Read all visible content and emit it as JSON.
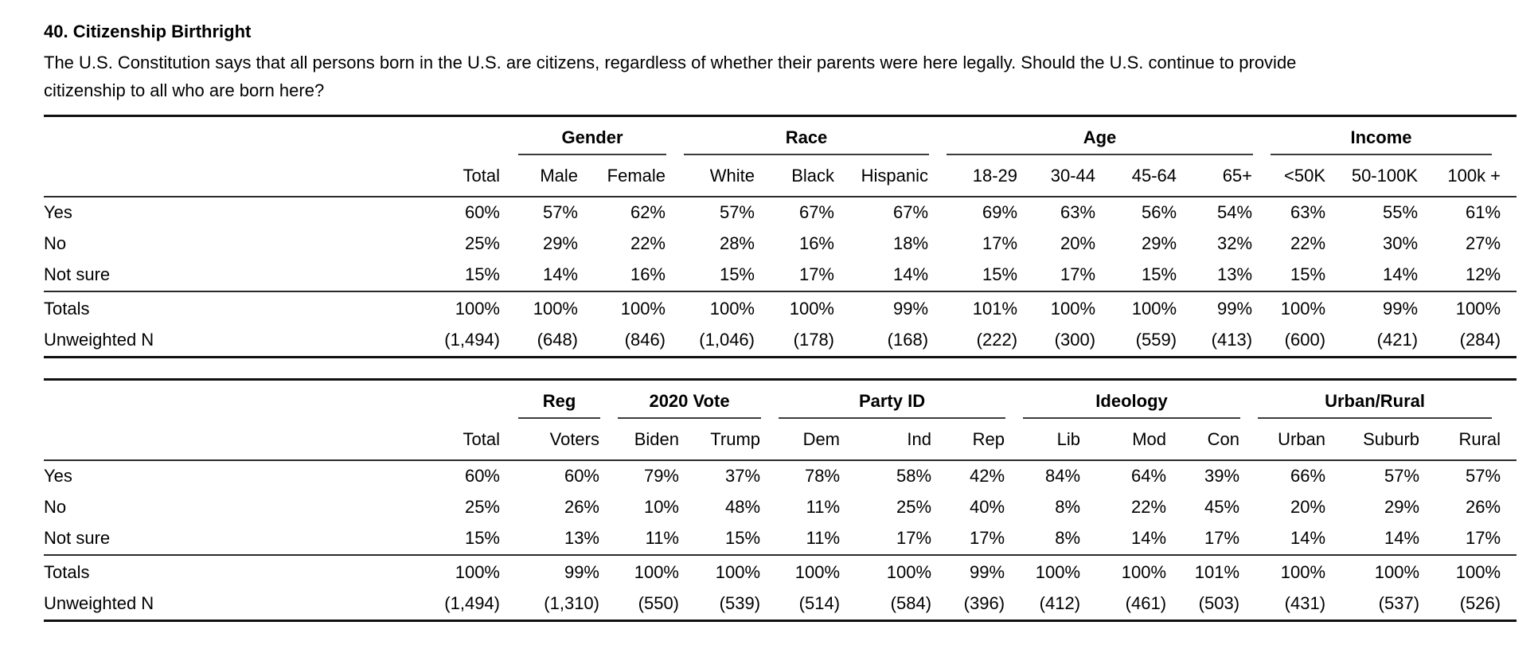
{
  "page": {
    "title": "40. Citizenship Birthright",
    "question": "The U.S. Constitution says that all persons born in the U.S. are citizens, regardless of whether their parents were here legally. Should the U.S. continue to provide citizenship to all who are born here?"
  },
  "tables": [
    {
      "id": "demographics",
      "groups": [
        {
          "label": "",
          "span": 2
        },
        {
          "label": "Gender",
          "span": 2
        },
        {
          "label": "Race",
          "span": 3
        },
        {
          "label": "Age",
          "span": 4
        },
        {
          "label": "Income",
          "span": 3
        }
      ],
      "columns": [
        "Total",
        "Male",
        "Female",
        "White",
        "Black",
        "Hispanic",
        "18-29",
        "30-44",
        "45-64",
        "65+",
        "<50K",
        "50-100K",
        "100k +"
      ],
      "rows": [
        {
          "label": "Yes",
          "values": [
            "60%",
            "57%",
            "62%",
            "57%",
            "67%",
            "67%",
            "69%",
            "63%",
            "56%",
            "54%",
            "63%",
            "55%",
            "61%"
          ]
        },
        {
          "label": "No",
          "values": [
            "25%",
            "29%",
            "22%",
            "28%",
            "16%",
            "18%",
            "17%",
            "20%",
            "29%",
            "32%",
            "22%",
            "30%",
            "27%"
          ]
        },
        {
          "label": "Not sure",
          "values": [
            "15%",
            "14%",
            "16%",
            "15%",
            "17%",
            "14%",
            "15%",
            "17%",
            "15%",
            "13%",
            "15%",
            "14%",
            "12%"
          ]
        }
      ],
      "summary_rows": [
        {
          "label": "Totals",
          "values": [
            "100%",
            "100%",
            "100%",
            "100%",
            "100%",
            "99%",
            "101%",
            "100%",
            "100%",
            "99%",
            "100%",
            "99%",
            "100%"
          ]
        },
        {
          "label": "Unweighted N",
          "values": [
            "(1,494)",
            "(648)",
            "(846)",
            "(1,046)",
            "(178)",
            "(168)",
            "(222)",
            "(300)",
            "(559)",
            "(413)",
            "(600)",
            "(421)",
            "(284)"
          ]
        }
      ]
    },
    {
      "id": "politics",
      "groups": [
        {
          "label": "",
          "span": 2
        },
        {
          "label": "Reg",
          "span": 1
        },
        {
          "label": "2020 Vote",
          "span": 2
        },
        {
          "label": "Party ID",
          "span": 3
        },
        {
          "label": "Ideology",
          "span": 3
        },
        {
          "label": "Urban/Rural",
          "span": 3
        }
      ],
      "columns": [
        "Total",
        "Voters",
        "Biden",
        "Trump",
        "Dem",
        "Ind",
        "Rep",
        "Lib",
        "Mod",
        "Con",
        "Urban",
        "Suburb",
        "Rural"
      ],
      "rows": [
        {
          "label": "Yes",
          "values": [
            "60%",
            "60%",
            "79%",
            "37%",
            "78%",
            "58%",
            "42%",
            "84%",
            "64%",
            "39%",
            "66%",
            "57%",
            "57%"
          ]
        },
        {
          "label": "No",
          "values": [
            "25%",
            "26%",
            "10%",
            "48%",
            "11%",
            "25%",
            "40%",
            "8%",
            "22%",
            "45%",
            "20%",
            "29%",
            "26%"
          ]
        },
        {
          "label": "Not sure",
          "values": [
            "15%",
            "13%",
            "11%",
            "15%",
            "11%",
            "17%",
            "17%",
            "8%",
            "14%",
            "17%",
            "14%",
            "14%",
            "17%"
          ]
        }
      ],
      "summary_rows": [
        {
          "label": "Totals",
          "values": [
            "100%",
            "99%",
            "100%",
            "100%",
            "100%",
            "100%",
            "99%",
            "100%",
            "100%",
            "101%",
            "100%",
            "100%",
            "100%"
          ]
        },
        {
          "label": "Unweighted N",
          "values": [
            "(1,494)",
            "(1,310)",
            "(550)",
            "(539)",
            "(514)",
            "(584)",
            "(396)",
            "(412)",
            "(461)",
            "(503)",
            "(431)",
            "(537)",
            "(526)"
          ]
        }
      ]
    }
  ]
}
